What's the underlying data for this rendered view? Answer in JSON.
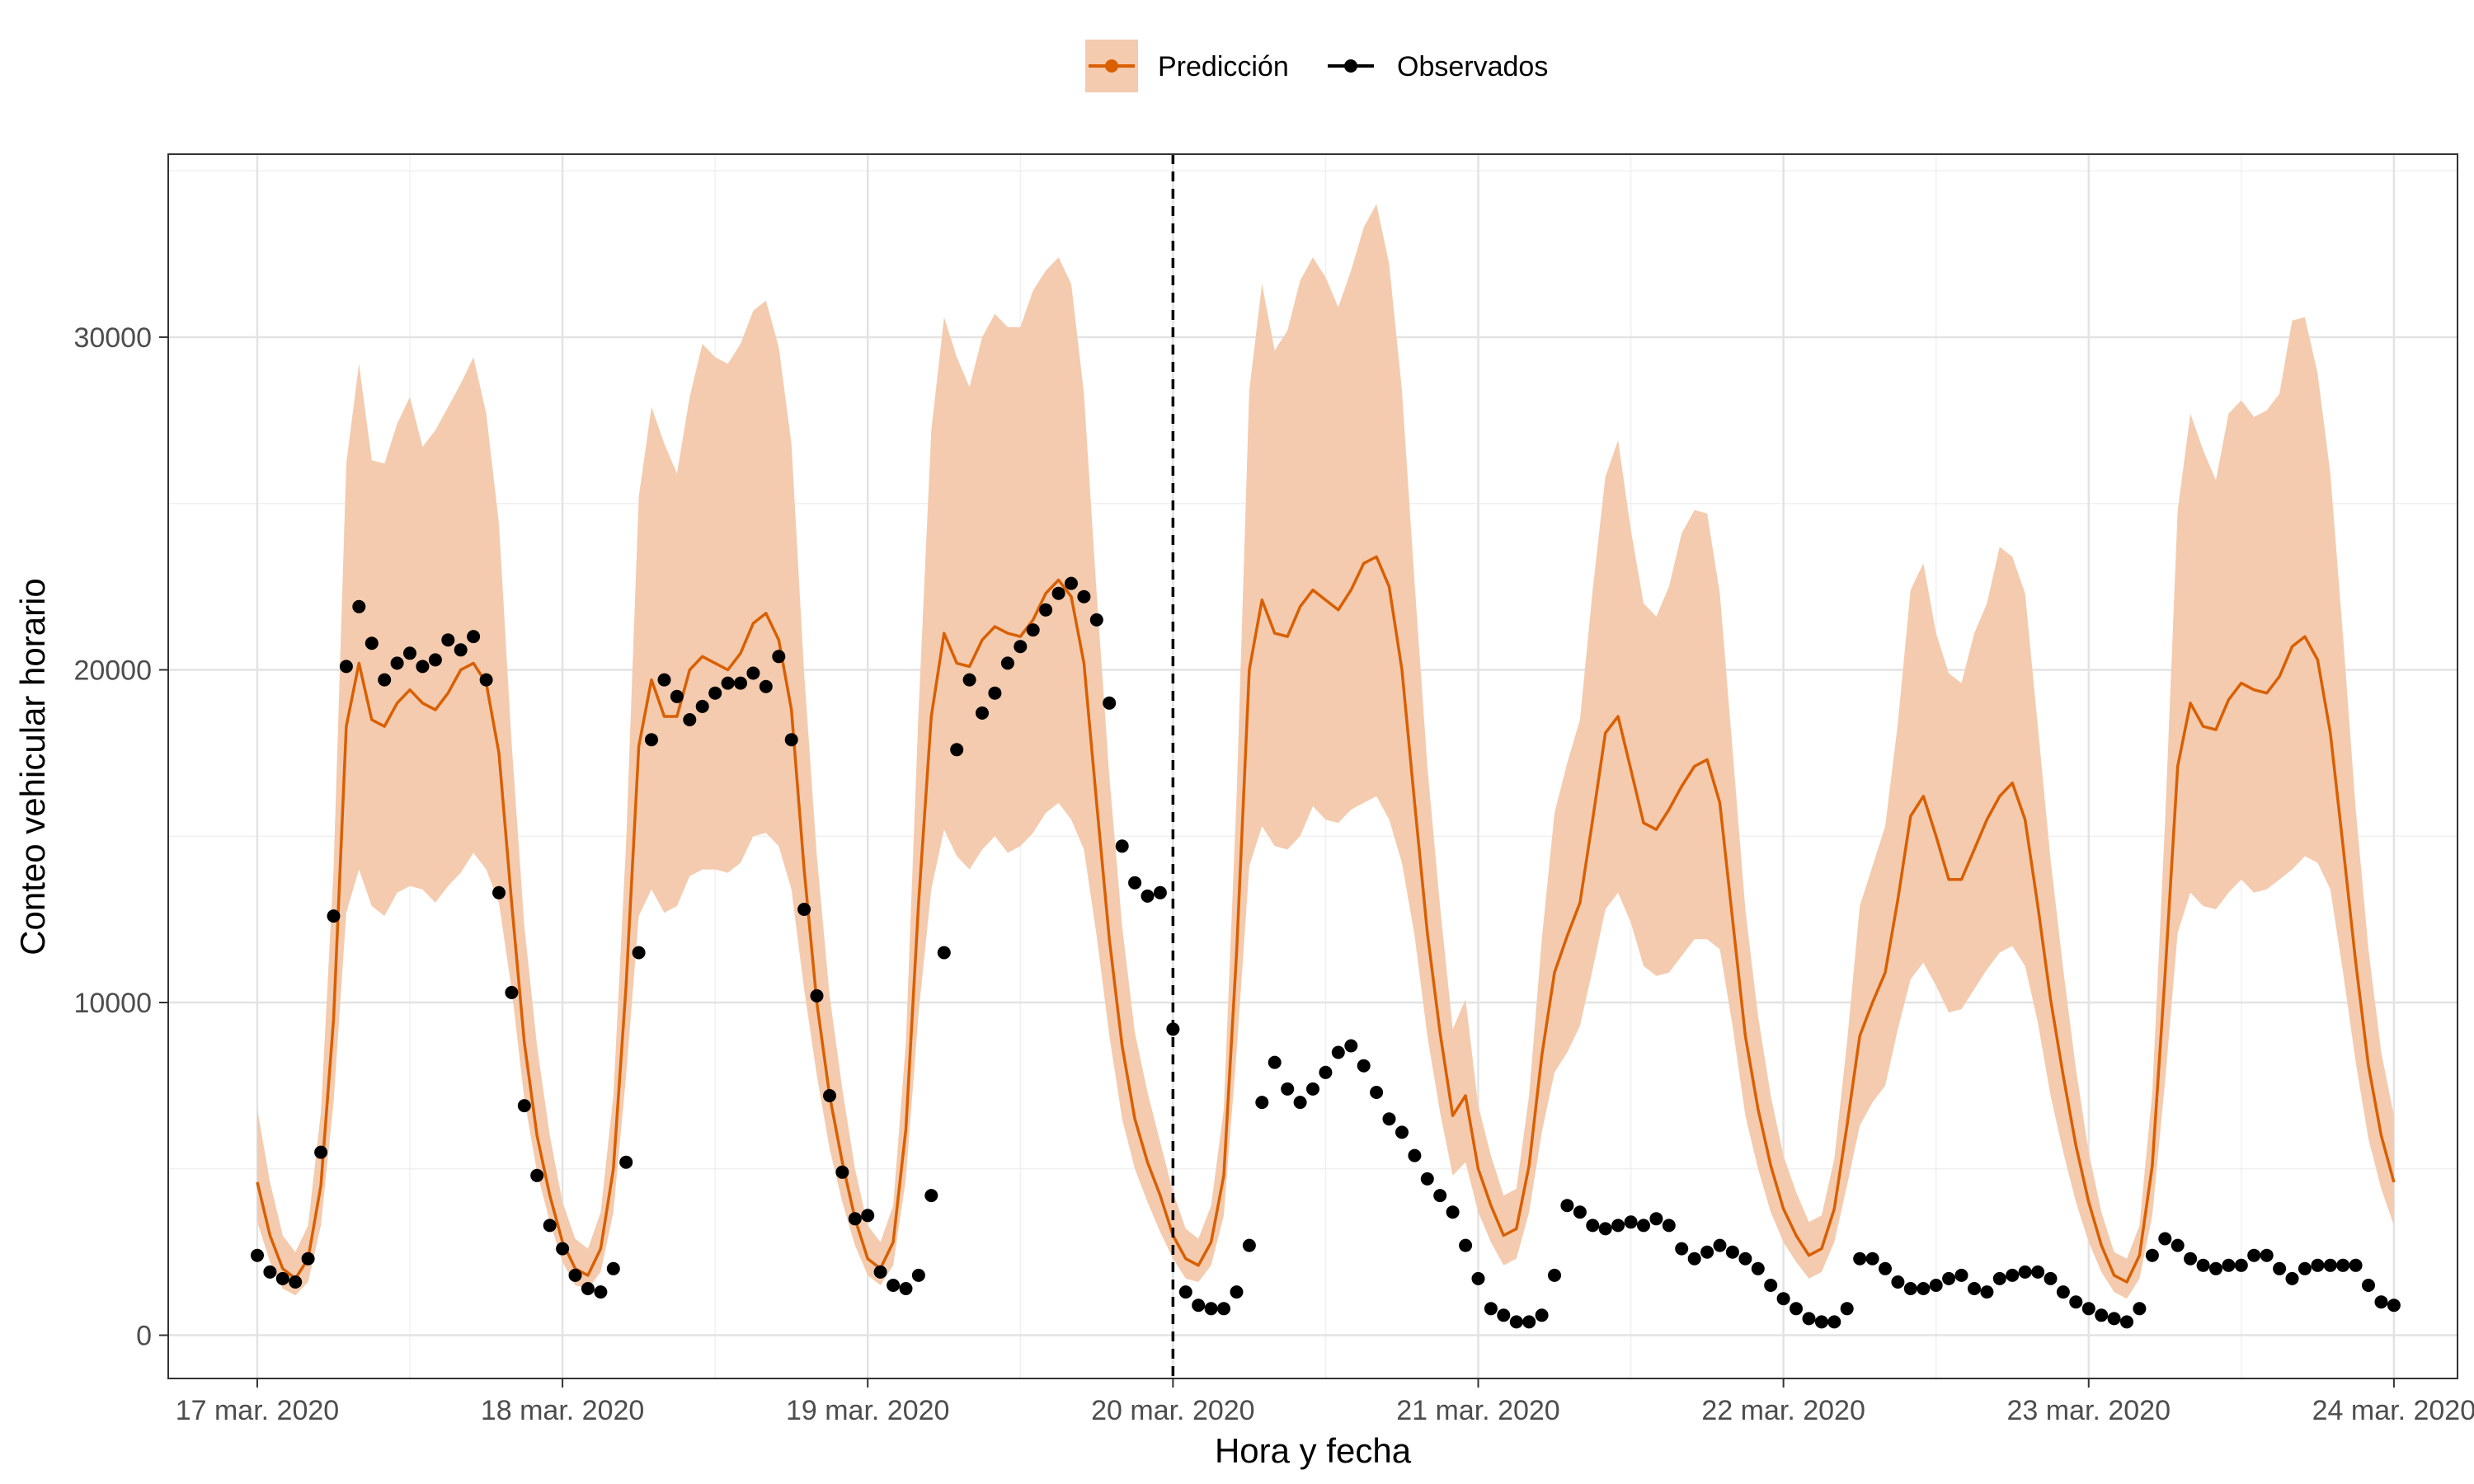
{
  "chart_data": {
    "type": "line",
    "xlabel": "Hora y fecha",
    "ylabel": "Conteo vehicular horario",
    "x_unit": "hours",
    "x_start": "17 mar. 2020 00:00",
    "xlim": [
      -7,
      173
    ],
    "ylim": [
      -1300,
      35500
    ],
    "yticks": [
      0,
      10000,
      20000,
      30000
    ],
    "ytick_labels": [
      "0",
      "10000",
      "20000",
      "30000"
    ],
    "xticks": [
      0,
      24,
      48,
      72,
      96,
      120,
      144,
      168
    ],
    "xtick_labels": [
      "17 mar. 2020",
      "18 mar. 2020",
      "19 mar. 2020",
      "20 mar. 2020",
      "21 mar. 2020",
      "22 mar. 2020",
      "23 mar. 2020",
      "24 mar. 2020"
    ],
    "vline_x": 72,
    "grid": true,
    "legend_position": "top",
    "colors": {
      "prediction": "#d95f02",
      "band": "#f4cbae",
      "observed": "#000000"
    },
    "series": [
      {
        "name": "Predicción",
        "type": "line_with_band",
        "x": [
          0,
          1,
          2,
          3,
          4,
          5,
          6,
          7,
          8,
          9,
          10,
          11,
          12,
          13,
          14,
          15,
          16,
          17,
          18,
          19,
          20,
          21,
          22,
          23,
          24,
          25,
          26,
          27,
          28,
          29,
          30,
          31,
          32,
          33,
          34,
          35,
          36,
          37,
          38,
          39,
          40,
          41,
          42,
          43,
          44,
          45,
          46,
          47,
          48,
          49,
          50,
          51,
          52,
          53,
          54,
          55,
          56,
          57,
          58,
          59,
          60,
          61,
          62,
          63,
          64,
          65,
          66,
          67,
          68,
          69,
          70,
          71,
          72,
          73,
          74,
          75,
          76,
          77,
          78,
          79,
          80,
          81,
          82,
          83,
          84,
          85,
          86,
          87,
          88,
          89,
          90,
          91,
          92,
          93,
          94,
          95,
          96,
          97,
          98,
          99,
          100,
          101,
          102,
          103,
          104,
          105,
          106,
          107,
          108,
          109,
          110,
          111,
          112,
          113,
          114,
          115,
          116,
          117,
          118,
          119,
          120,
          121,
          122,
          123,
          124,
          125,
          126,
          127,
          128,
          129,
          130,
          131,
          132,
          133,
          134,
          135,
          136,
          137,
          138,
          139,
          140,
          141,
          142,
          143,
          144,
          145,
          146,
          147,
          148,
          149,
          150,
          151,
          152,
          153,
          154,
          155,
          156,
          157,
          158,
          159,
          160,
          161,
          162,
          163,
          164,
          165,
          166,
          167,
          168
        ],
        "values": [
          4600,
          3000,
          2000,
          1700,
          2300,
          4500,
          9500,
          18300,
          20200,
          18500,
          18300,
          19000,
          19400,
          19000,
          18800,
          19300,
          20000,
          20200,
          19600,
          17500,
          13000,
          8800,
          6000,
          4200,
          2800,
          2000,
          1800,
          2600,
          5000,
          10500,
          17700,
          19700,
          18600,
          18600,
          20000,
          20400,
          20200,
          20000,
          20500,
          21400,
          21700,
          20900,
          18800,
          14000,
          10000,
          7200,
          5200,
          3500,
          2300,
          2000,
          2800,
          6200,
          13000,
          18600,
          21100,
          20200,
          20100,
          20900,
          21300,
          21100,
          21000,
          21500,
          22300,
          22700,
          22200,
          20200,
          16000,
          11900,
          8700,
          6500,
          5200,
          4200,
          3000,
          2300,
          2100,
          2800,
          4800,
          11500,
          20000,
          22100,
          21100,
          21000,
          21900,
          22400,
          22100,
          21800,
          22400,
          23200,
          23400,
          22500,
          20000,
          16000,
          12100,
          9100,
          6600,
          7200,
          5000,
          3900,
          3000,
          3200,
          5100,
          8400,
          10900,
          12000,
          13000,
          15500,
          18100,
          18600,
          17000,
          15400,
          15200,
          15800,
          16500,
          17100,
          17300,
          16000,
          12500,
          9000,
          6800,
          5100,
          3800,
          3000,
          2400,
          2600,
          3800,
          6300,
          9000,
          10000,
          10900,
          13100,
          15600,
          16200,
          15000,
          13700,
          13700,
          14600,
          15500,
          16200,
          16600,
          15500,
          12900,
          10100,
          7800,
          5700,
          4000,
          2700,
          1800,
          1600,
          2400,
          5100,
          10800,
          17100,
          19000,
          18300,
          18200,
          19100,
          19600,
          19400,
          19300,
          19800,
          20700,
          21000,
          20300,
          18100,
          14700,
          11200,
          8100,
          6000,
          4600
        ],
        "lower": [
          3400,
          2200,
          1400,
          1200,
          1600,
          3300,
          7000,
          12700,
          14000,
          12900,
          12600,
          13300,
          13500,
          13400,
          13000,
          13500,
          13900,
          14500,
          14000,
          13000,
          10400,
          7100,
          4900,
          3400,
          2200,
          1500,
          1400,
          1900,
          3700,
          7800,
          12600,
          13400,
          12700,
          12900,
          13800,
          14000,
          14000,
          13900,
          14200,
          15000,
          15100,
          14700,
          13400,
          10400,
          7800,
          5600,
          4000,
          2700,
          1800,
          1500,
          2100,
          4700,
          9700,
          13400,
          15200,
          14400,
          14000,
          14600,
          15000,
          14500,
          14700,
          15100,
          15700,
          16000,
          15500,
          14600,
          12000,
          9000,
          6500,
          5000,
          4000,
          3100,
          2300,
          1700,
          1600,
          2100,
          3600,
          8500,
          14100,
          15300,
          14700,
          14600,
          15000,
          15900,
          15500,
          15400,
          15800,
          16000,
          16200,
          15500,
          14200,
          12000,
          9000,
          6700,
          4800,
          5200,
          3700,
          2800,
          2100,
          2300,
          3700,
          6100,
          7900,
          8500,
          9300,
          11000,
          12800,
          13300,
          12400,
          11100,
          10800,
          10900,
          11400,
          11900,
          11900,
          11600,
          9300,
          6600,
          5000,
          3700,
          2800,
          2200,
          1700,
          1900,
          2800,
          4500,
          6300,
          7000,
          7500,
          9200,
          10700,
          11200,
          10500,
          9700,
          9800,
          10400,
          11000,
          11500,
          11700,
          11100,
          9400,
          7200,
          5500,
          4000,
          2800,
          1900,
          1300,
          1100,
          1700,
          3600,
          7600,
          12100,
          13300,
          12900,
          12800,
          13300,
          13700,
          13300,
          13400,
          13700,
          14000,
          14400,
          14200,
          13400,
          10900,
          8200,
          5900,
          4400,
          3300
        ],
        "upper": [
          6800,
          4600,
          3000,
          2500,
          3300,
          6700,
          14000,
          26200,
          29200,
          26300,
          26200,
          27400,
          28200,
          26700,
          27200,
          27900,
          28600,
          29400,
          27700,
          24400,
          17800,
          12300,
          8700,
          6000,
          4000,
          2900,
          2600,
          3700,
          7200,
          14800,
          25200,
          27900,
          26800,
          25900,
          28200,
          29800,
          29400,
          29200,
          29800,
          30800,
          31100,
          29700,
          26800,
          19900,
          14400,
          10200,
          7400,
          5000,
          3300,
          2800,
          3900,
          8800,
          18800,
          27200,
          30600,
          29400,
          28500,
          30000,
          30700,
          30300,
          30300,
          31400,
          32000,
          32400,
          31600,
          28300,
          22300,
          16800,
          12300,
          9100,
          7300,
          5800,
          4300,
          3200,
          2900,
          3900,
          6800,
          16200,
          28400,
          31600,
          29600,
          30200,
          31700,
          32400,
          31800,
          30900,
          32000,
          33300,
          34000,
          32200,
          28400,
          22600,
          17100,
          12900,
          9200,
          10100,
          6900,
          5400,
          4200,
          4400,
          7200,
          11900,
          15700,
          17200,
          18500,
          22400,
          25800,
          26900,
          24200,
          22000,
          21600,
          22500,
          24100,
          24800,
          24700,
          22300,
          17600,
          12800,
          9600,
          7200,
          5400,
          4300,
          3400,
          3600,
          5300,
          8800,
          12900,
          14100,
          15300,
          18400,
          22400,
          23200,
          21100,
          19900,
          19600,
          21100,
          22000,
          23700,
          23400,
          22300,
          18300,
          14300,
          11000,
          8000,
          5500,
          3700,
          2500,
          2300,
          3300,
          7300,
          15400,
          24800,
          27700,
          26600,
          25700,
          27700,
          28100,
          27600,
          27800,
          28300,
          30500,
          30600,
          28900,
          25900,
          21000,
          15800,
          11600,
          8500,
          6600
        ]
      },
      {
        "name": "Observados",
        "type": "points",
        "x": [
          0,
          1,
          2,
          3,
          4,
          5,
          6,
          7,
          8,
          9,
          10,
          11,
          12,
          13,
          14,
          15,
          16,
          17,
          18,
          19,
          20,
          21,
          22,
          23,
          24,
          25,
          26,
          27,
          28,
          29,
          30,
          31,
          32,
          33,
          34,
          35,
          36,
          37,
          38,
          39,
          40,
          41,
          42,
          43,
          44,
          45,
          46,
          47,
          48,
          49,
          50,
          51,
          52,
          53,
          54,
          55,
          56,
          57,
          58,
          59,
          60,
          61,
          62,
          63,
          64,
          65,
          66,
          67,
          68,
          69,
          70,
          71,
          72,
          73,
          74,
          75,
          76,
          77,
          78,
          79,
          80,
          81,
          82,
          83,
          84,
          85,
          86,
          87,
          88,
          89,
          90,
          91,
          92,
          93,
          94,
          95,
          96,
          97,
          98,
          99,
          100,
          101,
          102,
          103,
          104,
          105,
          106,
          107,
          108,
          109,
          110,
          111,
          112,
          113,
          114,
          115,
          116,
          117,
          118,
          119,
          120,
          121,
          122,
          123,
          124,
          125,
          126,
          127,
          128,
          129,
          130,
          131,
          132,
          133,
          134,
          135,
          136,
          137,
          138,
          139,
          140,
          141,
          142,
          143,
          144,
          145,
          146,
          147,
          148,
          149,
          150,
          151,
          152,
          153,
          154,
          155,
          156,
          157,
          158,
          159,
          160,
          161,
          162,
          163,
          164,
          165,
          166,
          167,
          168
        ],
        "values": [
          2400,
          1900,
          1700,
          1600,
          2300,
          5500,
          12600,
          20100,
          21900,
          20800,
          19700,
          20200,
          20500,
          20100,
          20300,
          20900,
          20600,
          21000,
          19700,
          13300,
          10300,
          6900,
          4800,
          3300,
          2600,
          1800,
          1400,
          1300,
          2000,
          5200,
          11500,
          17900,
          19700,
          19200,
          18500,
          18900,
          19300,
          19600,
          19600,
          19900,
          19500,
          20400,
          17900,
          12800,
          10200,
          7200,
          4900,
          3500,
          3600,
          1900,
          1500,
          1400,
          1800,
          4200,
          11500,
          17600,
          19700,
          18700,
          19300,
          20200,
          20700,
          21200,
          21800,
          22300,
          22600,
          22200,
          21500,
          19000,
          14700,
          13600,
          13200,
          13300,
          9200,
          1300,
          900,
          800,
          800,
          1300,
          2700,
          7000,
          8200,
          7400,
          7000,
          7400,
          7900,
          8500,
          8700,
          8100,
          7300,
          6500,
          6100,
          5400,
          4700,
          4200,
          3700,
          2700,
          1700,
          800,
          600,
          400,
          400,
          600,
          1800,
          3900,
          3700,
          3300,
          3200,
          3300,
          3400,
          3300,
          3500,
          3300,
          2600,
          2300,
          2500,
          2700,
          2500,
          2300,
          2000,
          1500,
          1100,
          800,
          500,
          400,
          400,
          800,
          2300,
          2300,
          2000,
          1600,
          1400,
          1400,
          1500,
          1700,
          1800,
          1400,
          1300,
          1700,
          1800,
          1900,
          1900,
          1700,
          1300,
          1000,
          800,
          600,
          500,
          400,
          800,
          2400,
          2900,
          2700,
          2300,
          2100,
          2000,
          2100,
          2100,
          2400,
          2400,
          2000,
          1700,
          2000,
          2100,
          2100,
          2100,
          2100,
          1500,
          1000,
          900
        ]
      }
    ]
  }
}
